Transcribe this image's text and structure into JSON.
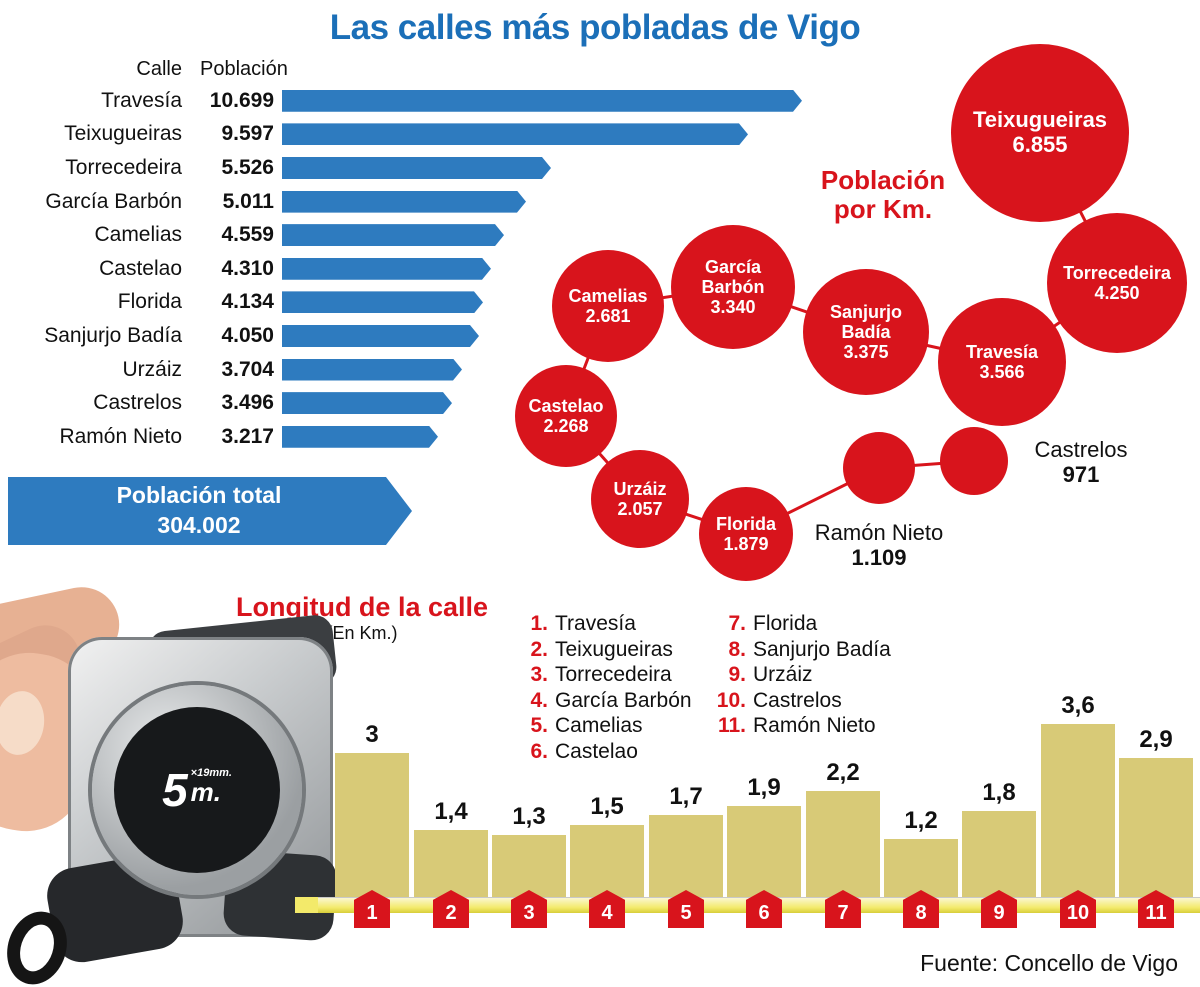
{
  "title": "Las calles más pobladas de Vigo",
  "source": "Fuente: Concello de Vigo",
  "colors": {
    "title_blue": "#1b6fb8",
    "blue": "#2e7bbf",
    "red": "#d8141c",
    "khaki": "#d8ca77"
  },
  "population_table": {
    "header_street": "Calle",
    "header_population": "Población",
    "total_label": "Población total",
    "total_value": "304.002"
  },
  "bubble_section": {
    "heading_line1": "Población",
    "heading_line2": "por Km."
  },
  "length_section": {
    "heading": "Longitud de la calle",
    "subheading": "(En Km.)"
  },
  "tape_measure": {
    "size_number": "5",
    "size_detail": "×19mm.",
    "size_unit": "m."
  },
  "chart_data": [
    {
      "type": "bar",
      "orientation": "horizontal",
      "title": "Las calles más pobladas de Vigo",
      "xlabel": "Población",
      "ylabel": "Calle",
      "categories": [
        "Travesía",
        "Teixugueiras",
        "Torrecedeira",
        "García Barbón",
        "Camelias",
        "Castelao",
        "Florida",
        "Sanjurjo Badía",
        "Urzáiz",
        "Castrelos",
        "Ramón Nieto"
      ],
      "values": [
        10699,
        9597,
        5526,
        5011,
        4559,
        4310,
        4134,
        4050,
        3704,
        3496,
        3217
      ],
      "value_labels": [
        "10.699",
        "9.597",
        "5.526",
        "5.011",
        "4.559",
        "4.310",
        "4.134",
        "4.050",
        "3.704",
        "3.496",
        "3.217"
      ],
      "total": {
        "label": "Población total",
        "value": 304002,
        "value_label": "304.002"
      }
    },
    {
      "type": "bubble",
      "title": "Población por Km.",
      "items": [
        {
          "name": "Teixugueiras",
          "value": 6855,
          "label": "6.855",
          "label_inside": true
        },
        {
          "name": "Torrecedeira",
          "value": 4250,
          "label": "4.250",
          "label_inside": true
        },
        {
          "name": "Travesía",
          "value": 3566,
          "label": "3.566",
          "label_inside": true
        },
        {
          "name": "Sanjurjo Badía",
          "value": 3375,
          "label": "3.375",
          "label_inside": true
        },
        {
          "name": "García Barbón",
          "value": 3340,
          "label": "3.340",
          "label_inside": true
        },
        {
          "name": "Camelias",
          "value": 2681,
          "label": "2.681",
          "label_inside": true
        },
        {
          "name": "Castelao",
          "value": 2268,
          "label": "2.268",
          "label_inside": true
        },
        {
          "name": "Urzáiz",
          "value": 2057,
          "label": "2.057",
          "label_inside": true
        },
        {
          "name": "Florida",
          "value": 1879,
          "label": "1.879",
          "label_inside": true
        },
        {
          "name": "Ramón Nieto",
          "value": 1109,
          "label": "1.109",
          "label_inside": false
        },
        {
          "name": "Castrelos",
          "value": 971,
          "label": "971",
          "label_inside": false
        }
      ]
    },
    {
      "type": "bar",
      "orientation": "vertical",
      "title": "Longitud de la calle",
      "subtitle": "(En Km.)",
      "categories": [
        "Travesía",
        "Teixugueiras",
        "Torrecedeira",
        "García Barbón",
        "Camelias",
        "Castelao",
        "Florida",
        "Sanjurjo Badía",
        "Urzáiz",
        "Castrelos",
        "Ramón Nieto"
      ],
      "x_tick_labels": [
        "1",
        "2",
        "3",
        "4",
        "5",
        "6",
        "7",
        "8",
        "9",
        "10",
        "11"
      ],
      "values": [
        3,
        1.4,
        1.3,
        1.5,
        1.7,
        1.9,
        2.2,
        1.2,
        1.8,
        3.6,
        2.9
      ],
      "value_labels": [
        "3",
        "1,4",
        "1,3",
        "1,5",
        "1,7",
        "1,9",
        "2,2",
        "1,2",
        "1,8",
        "3,6",
        "2,9"
      ],
      "ylim": [
        0,
        4
      ],
      "legend": [
        {
          "num": "1.",
          "name": "Travesía"
        },
        {
          "num": "2.",
          "name": "Teixugueiras"
        },
        {
          "num": "3.",
          "name": "Torrecedeira"
        },
        {
          "num": "4.",
          "name": "García Barbón"
        },
        {
          "num": "5.",
          "name": "Camelias"
        },
        {
          "num": "6.",
          "name": "Castelao"
        },
        {
          "num": "7.",
          "name": "Florida"
        },
        {
          "num": "8.",
          "name": "Sanjurjo Badía"
        },
        {
          "num": "9.",
          "name": "Urzáiz"
        },
        {
          "num": "10.",
          "name": "Castrelos"
        },
        {
          "num": "11.",
          "name": "Ramón Nieto"
        }
      ]
    }
  ]
}
